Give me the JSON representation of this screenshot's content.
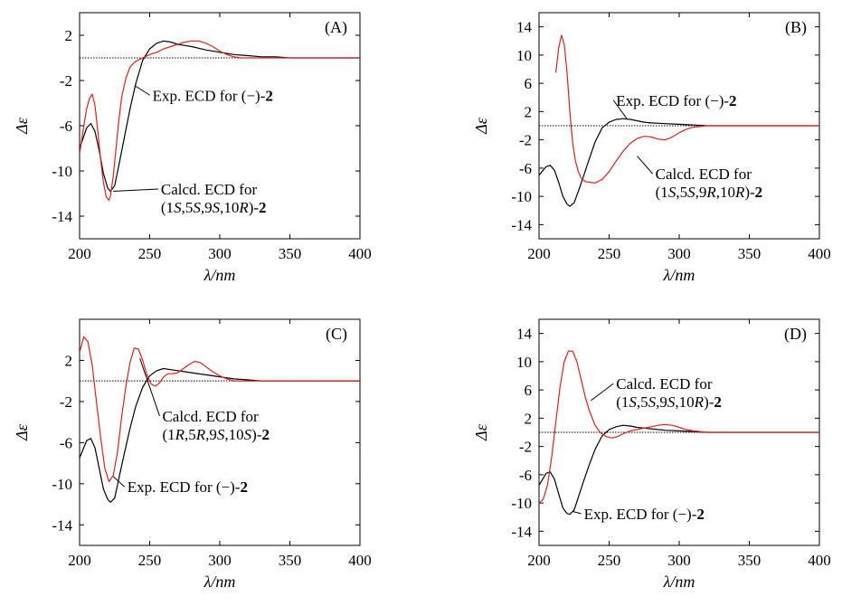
{
  "figure": {
    "xlabel": "λ/nm",
    "ylabel": "Δε"
  },
  "chart_data": [
    {
      "type": "line",
      "panel": "(A)",
      "xlabel": "λ/nm",
      "ylabel": "Δε",
      "xlim": [
        200,
        400
      ],
      "ylim": [
        -16,
        4
      ],
      "xticks": [
        200,
        250,
        300,
        350,
        400
      ],
      "yticks": [
        2,
        -2,
        -6,
        -10,
        -14
      ],
      "series": [
        {
          "color": "#000000",
          "x": [
            200,
            205,
            208,
            211,
            214,
            217,
            220,
            222,
            225,
            228,
            232,
            236,
            240,
            245,
            250,
            255,
            260,
            265,
            270,
            275,
            280,
            290,
            300,
            310,
            320,
            330,
            340,
            350,
            360,
            380,
            400
          ],
          "y": [
            -8,
            -6.2,
            -5.8,
            -6.5,
            -8.2,
            -10.2,
            -11.5,
            -11.8,
            -11.3,
            -9.5,
            -7,
            -4.5,
            -2.3,
            -0.2,
            0.8,
            1.3,
            1.5,
            1.4,
            1.2,
            1.1,
            1,
            0.7,
            0.5,
            0.3,
            0.2,
            0.1,
            0.1,
            0,
            0,
            0,
            0
          ]
        },
        {
          "color": "#e0201a",
          "x": [
            200,
            203,
            205,
            207,
            209,
            211,
            213,
            215,
            217,
            219,
            221,
            222,
            224,
            226,
            228,
            230,
            233,
            236,
            240,
            245,
            250,
            255,
            260,
            265,
            270,
            275,
            280,
            285,
            290,
            295,
            300,
            305,
            310,
            315,
            320,
            330,
            340,
            360,
            380,
            400
          ],
          "y": [
            -8.5,
            -6,
            -4.5,
            -3.6,
            -3.2,
            -4.2,
            -6.5,
            -9,
            -11,
            -12.3,
            -12.6,
            -12.2,
            -10.5,
            -8,
            -5.5,
            -3.5,
            -1.8,
            -0.8,
            -0.3,
            0,
            0.3,
            0.5,
            0.8,
            1,
            1.2,
            1.4,
            1.5,
            1.5,
            1.3,
            1,
            0.6,
            0.3,
            0.1,
            0,
            0,
            0,
            0,
            0,
            0,
            0
          ]
        }
      ],
      "annotations": [
        {
          "lines": [
            [
              "Exp. ECD for (−)-",
              "2"
            ]
          ],
          "label_at": [
            252,
            -3.3
          ],
          "arrow_to": [
            240,
            -2.5
          ]
        },
        {
          "lines": [
            [
              "Calcd. ECD for"
            ],
            [
              "(1",
              "S",
              ",5",
              "S",
              ",9",
              "S",
              ",10",
              "R",
              ")-",
              "2"
            ]
          ],
          "label_at": [
            258,
            -11.6
          ],
          "arrow_to": [
            224,
            -11.8
          ]
        }
      ]
    },
    {
      "type": "line",
      "panel": "(B)",
      "xlabel": "λ/nm",
      "ylabel": "Δε",
      "xlim": [
        200,
        400
      ],
      "ylim": [
        -16,
        16
      ],
      "xticks": [
        200,
        250,
        300,
        350,
        400
      ],
      "yticks": [
        14,
        10,
        6,
        2,
        -2,
        -6,
        -10,
        -14
      ],
      "series": [
        {
          "color": "#000000",
          "x": [
            200,
            205,
            208,
            211,
            214,
            217,
            220,
            222,
            225,
            228,
            232,
            236,
            240,
            245,
            250,
            255,
            260,
            265,
            270,
            275,
            280,
            290,
            300,
            310,
            320,
            330,
            340,
            350,
            360,
            380,
            400
          ],
          "y": [
            -7,
            -5.8,
            -5.6,
            -6.3,
            -8,
            -10,
            -11.1,
            -11.4,
            -10.9,
            -9.3,
            -7,
            -4.6,
            -2.3,
            -0.3,
            0.5,
            0.9,
            1,
            0.9,
            0.7,
            0.5,
            0.4,
            0.3,
            0.2,
            0.1,
            0,
            0,
            0,
            0,
            0,
            0,
            0
          ]
        },
        {
          "color": "#e0201a",
          "x": [
            212,
            214,
            216,
            218,
            220,
            222,
            224,
            226,
            228,
            230,
            233,
            236,
            240,
            245,
            250,
            255,
            260,
            265,
            270,
            275,
            280,
            285,
            290,
            295,
            300,
            305,
            310,
            320,
            330,
            340,
            360,
            380,
            400
          ],
          "y": [
            7.5,
            11,
            12.8,
            11.5,
            7.5,
            2,
            -2.5,
            -5,
            -6.5,
            -7.4,
            -7.9,
            -8,
            -8.1,
            -7.6,
            -6.5,
            -5,
            -3.6,
            -2.5,
            -1.8,
            -1.5,
            -1.6,
            -1.9,
            -2,
            -1.6,
            -1,
            -0.5,
            -0.2,
            0,
            0,
            0,
            0,
            0,
            0
          ]
        }
      ],
      "annotations": [
        {
          "lines": [
            [
              "Exp. ECD for (−)-",
              "2"
            ]
          ],
          "label_at": [
            255,
            3.6
          ],
          "arrow_to": [
            263,
            0.9
          ]
        },
        {
          "lines": [
            [
              "Calcd. ECD for"
            ],
            [
              "(1",
              "S",
              ",5",
              "S",
              ",9",
              "R",
              ",10",
              "R",
              ")-",
              "2"
            ]
          ],
          "label_at": [
            283,
            -6.8
          ],
          "arrow_to": [
            270,
            -4.3
          ]
        }
      ]
    },
    {
      "type": "line",
      "panel": "(C)",
      "xlabel": "λ/nm",
      "ylabel": "Δε",
      "xlim": [
        200,
        400
      ],
      "ylim": [
        -16,
        6
      ],
      "xticks": [
        200,
        250,
        300,
        350,
        400
      ],
      "yticks": [
        2,
        -2,
        -6,
        -10,
        -14
      ],
      "series": [
        {
          "color": "#000000",
          "x": [
            200,
            205,
            208,
            211,
            214,
            217,
            220,
            222,
            225,
            228,
            232,
            236,
            240,
            245,
            250,
            255,
            260,
            265,
            270,
            275,
            280,
            290,
            300,
            310,
            320,
            330,
            340,
            350,
            360,
            380,
            400
          ],
          "y": [
            -7.5,
            -5.8,
            -5.6,
            -6.5,
            -8.5,
            -10.5,
            -11.5,
            -11.8,
            -11.4,
            -9.5,
            -7,
            -4.6,
            -2.5,
            -0.6,
            0.5,
            1,
            1.2,
            1.1,
            1,
            0.9,
            0.8,
            0.6,
            0.4,
            0.2,
            0.1,
            0,
            0,
            0,
            0,
            0,
            0
          ]
        },
        {
          "color": "#e0201a",
          "x": [
            200,
            203,
            206,
            209,
            212,
            215,
            218,
            221,
            224,
            227,
            230,
            233,
            236,
            239,
            242,
            245,
            248,
            251,
            254,
            257,
            260,
            263,
            266,
            270,
            274,
            278,
            282,
            286,
            290,
            295,
            300,
            305,
            310,
            315,
            320,
            330,
            340,
            360,
            380,
            400
          ],
          "y": [
            2.8,
            4.3,
            3.8,
            1.5,
            -2,
            -5.5,
            -8.5,
            -9.8,
            -9.2,
            -7,
            -3.5,
            -0.5,
            1.8,
            3.2,
            3.1,
            2,
            0.6,
            -0.3,
            -0.5,
            -0.2,
            0.4,
            0.7,
            0.7,
            0.8,
            1.2,
            1.6,
            1.9,
            1.8,
            1.4,
            0.9,
            0.5,
            0.2,
            0,
            0,
            0,
            0,
            0,
            0,
            0,
            0
          ]
        }
      ],
      "annotations": [
        {
          "lines": [
            [
              "Calcd. ECD for"
            ],
            [
              "(1",
              "R",
              ",5",
              "R",
              ",9",
              "S",
              ",10",
              "S",
              ")-",
              "2"
            ]
          ],
          "label_at": [
            259,
            -3.4
          ],
          "arrow_to": [
            243,
            2.2
          ]
        },
        {
          "lines": [
            [
              "Exp. ECD for (−)-",
              "2"
            ]
          ],
          "label_at": [
            234,
            -10.3
          ],
          "arrow_to": [
            224,
            -9.3
          ]
        }
      ]
    },
    {
      "type": "line",
      "panel": "(D)",
      "xlabel": "λ/nm",
      "ylabel": "Δε",
      "xlim": [
        200,
        400
      ],
      "ylim": [
        -16,
        16
      ],
      "xticks": [
        200,
        250,
        300,
        350,
        400
      ],
      "yticks": [
        14,
        10,
        6,
        2,
        -2,
        -6,
        -10,
        -14
      ],
      "series": [
        {
          "color": "#000000",
          "x": [
            200,
            205,
            208,
            211,
            214,
            217,
            220,
            222,
            225,
            228,
            232,
            236,
            240,
            245,
            250,
            255,
            260,
            265,
            270,
            275,
            280,
            290,
            300,
            310,
            320,
            330,
            340,
            350,
            360,
            380,
            400
          ],
          "y": [
            -7.5,
            -5.8,
            -5.6,
            -6.6,
            -8.7,
            -10.7,
            -11.5,
            -11.6,
            -11,
            -9.2,
            -6.8,
            -4.5,
            -2.4,
            -0.5,
            0.4,
            0.8,
            1,
            0.9,
            0.7,
            0.6,
            0.5,
            0.3,
            0.2,
            0.1,
            0,
            0,
            0,
            0,
            0,
            0,
            0
          ]
        },
        {
          "color": "#e0201a",
          "x": [
            200,
            203,
            206,
            209,
            212,
            215,
            218,
            221,
            224,
            227,
            230,
            233,
            236,
            240,
            244,
            248,
            252,
            256,
            260,
            265,
            270,
            275,
            280,
            285,
            290,
            295,
            300,
            305,
            310,
            320,
            330,
            340,
            360,
            380,
            400
          ],
          "y": [
            -10,
            -9.5,
            -7.5,
            -3.5,
            1.5,
            6.5,
            10,
            11.5,
            11.5,
            10,
            7.5,
            5,
            3,
            1,
            -0.1,
            -0.6,
            -0.8,
            -0.6,
            -0.2,
            0.2,
            0.4,
            0.6,
            0.8,
            1,
            1.1,
            1,
            0.7,
            0.4,
            0.2,
            0,
            0,
            0,
            0,
            0,
            0
          ]
        }
      ],
      "annotations": [
        {
          "lines": [
            [
              "Calcd. ECD for"
            ],
            [
              "(1",
              "S",
              ",5",
              "S",
              ",9",
              "S",
              ",10",
              "R",
              ")-",
              "2"
            ]
          ],
          "label_at": [
            255,
            6.9
          ],
          "arrow_to": [
            237,
            4.5
          ]
        },
        {
          "lines": [
            [
              "Exp. ECD for (−)-",
              "2"
            ]
          ],
          "label_at": [
            232,
            -11.5
          ],
          "arrow_to": [
            224,
            -11.2
          ]
        }
      ]
    }
  ]
}
